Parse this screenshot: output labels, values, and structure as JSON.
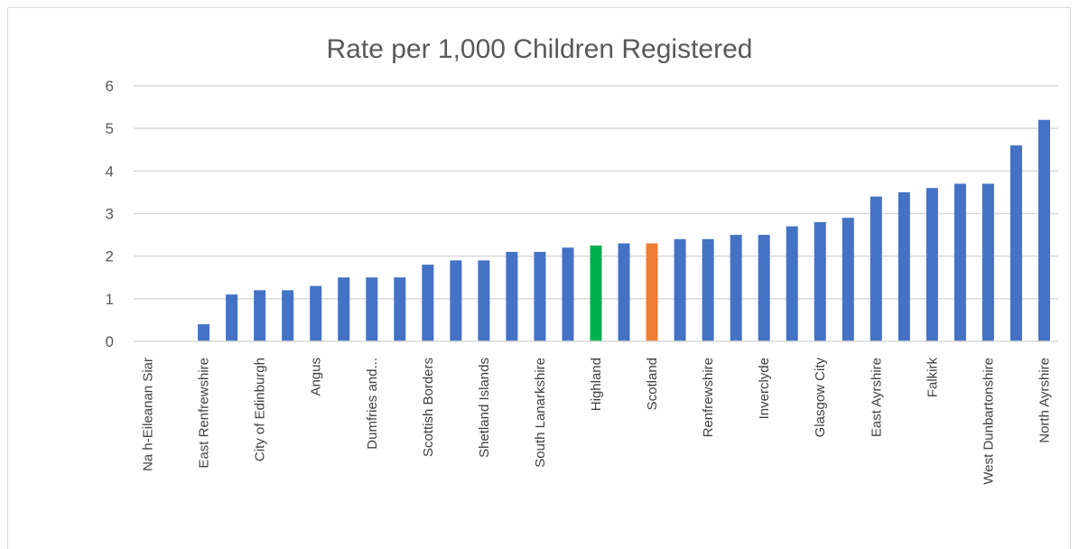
{
  "chart_data": {
    "type": "bar",
    "title": "Rate per 1,000 Children Registered",
    "xlabel": "",
    "ylabel": "",
    "ylim": [
      0,
      6
    ],
    "yticks": [
      0,
      1,
      2,
      3,
      4,
      5,
      6
    ],
    "grid": true,
    "legend": "none",
    "categories": [
      "Na h-Eileanan Siar",
      "",
      "East Renfrewshire",
      "",
      "City of Edinburgh",
      "",
      "Angus",
      "",
      "Dumfries and...",
      "",
      "Scottish Borders",
      "",
      "Shetland Islands",
      "",
      "South Lanarkshire",
      "",
      "Highland",
      "",
      "Scotland",
      "",
      "Renfrewshire",
      "",
      "Inverclyde",
      "",
      "Glasgow City",
      "",
      "East Ayrshire",
      "",
      "Falkirk",
      "",
      "West Dunbartonshire",
      "",
      "North Ayrshire"
    ],
    "values": [
      0,
      0,
      0.4,
      1.1,
      1.2,
      1.2,
      1.3,
      1.5,
      1.5,
      1.5,
      1.8,
      1.9,
      1.9,
      2.1,
      2.1,
      2.2,
      2.25,
      2.3,
      2.3,
      2.4,
      2.4,
      2.5,
      2.5,
      2.7,
      2.8,
      2.9,
      3.4,
      3.5,
      3.6,
      3.7,
      3.7,
      4.6,
      5.2
    ],
    "colors": {
      "default": "#4472c4",
      "Highland": "#00b050",
      "Scotland": "#ed7d31",
      "grid": "#d9d9d9",
      "axis_text": "#595959"
    }
  }
}
